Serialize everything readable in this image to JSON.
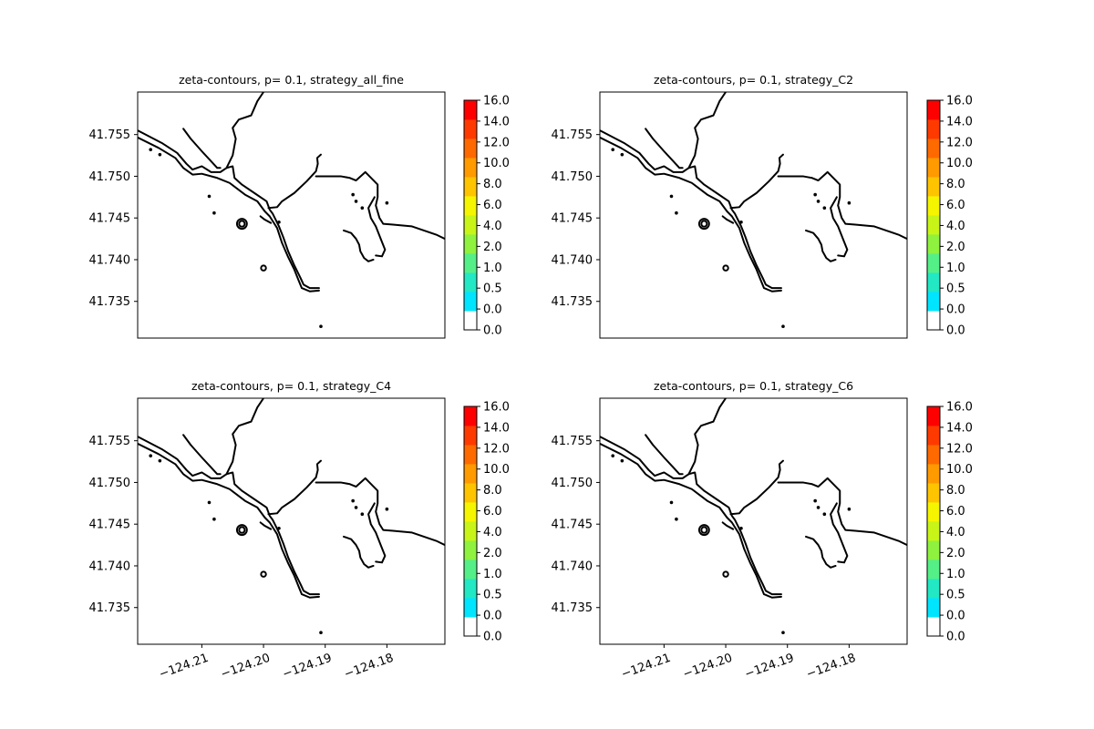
{
  "chart_data": {
    "type": "contour-map",
    "layout": "2x2 subplots with colorbars",
    "xlim": [
      -124.2204,
      -124.1706
    ],
    "ylim": [
      41.7306,
      41.7601
    ],
    "x_ticks": [
      -124.21,
      -124.2,
      -124.19,
      -124.18
    ],
    "x_tick_labels": [
      "−124.21",
      "−124.20",
      "−124.19",
      "−124.18"
    ],
    "y_ticks": [
      41.735,
      41.74,
      41.745,
      41.75,
      41.755
    ],
    "y_tick_labels": [
      "41.735",
      "41.740",
      "41.745",
      "41.750",
      "41.755"
    ],
    "colorbar": {
      "tick_labels": [
        "0.0",
        "0.0",
        "0.5",
        "1.0",
        "2.0",
        "4.0",
        "6.0",
        "8.0",
        "10.0",
        "12.0",
        "14.0",
        "16.0"
      ],
      "colors": [
        "#ffffff",
        "#00e5ff",
        "#22e8c4",
        "#55ef88",
        "#8ef23f",
        "#c8f517",
        "#f5f500",
        "#ffc400",
        "#ff9a00",
        "#ff6a00",
        "#ff3a00",
        "#ff0000"
      ]
    },
    "line_color": "#000000",
    "panels": [
      {
        "title": "zeta-contours, p= 0.1, strategy_all_fine"
      },
      {
        "title": "zeta-contours, p= 0.1, strategy_C2"
      },
      {
        "title": "zeta-contours, p= 0.1, strategy_C4"
      },
      {
        "title": "zeta-contours, p= 0.1, strategy_C6"
      }
    ],
    "shoreline": {
      "lines": [
        [
          [
            -124.2204,
            41.7555
          ],
          [
            -124.2165,
            41.754
          ],
          [
            -124.214,
            41.7528
          ],
          [
            -124.2125,
            41.7515
          ],
          [
            -124.2115,
            41.7508
          ],
          [
            -124.21,
            41.7512
          ],
          [
            -124.2085,
            41.7505
          ],
          [
            -124.207,
            41.7505
          ],
          [
            -124.206,
            41.751
          ],
          [
            -124.205,
            41.7512
          ],
          [
            -124.2047,
            41.7498
          ],
          [
            -124.2035,
            41.749
          ],
          [
            -124.2015,
            41.748
          ],
          [
            -124.1995,
            41.747
          ],
          [
            -124.199,
            41.746
          ],
          [
            -124.1985,
            41.7455
          ],
          [
            -124.1975,
            41.744
          ],
          [
            -124.1968,
            41.7427
          ],
          [
            -124.196,
            41.741
          ],
          [
            -124.195,
            41.7393
          ],
          [
            -124.194,
            41.7378
          ],
          [
            -124.1935,
            41.737
          ],
          [
            -124.1925,
            41.7366
          ],
          [
            -124.191,
            41.7366
          ]
        ],
        [
          [
            -124.2208,
            41.7548
          ],
          [
            -124.217,
            41.7534
          ],
          [
            -124.2143,
            41.7522
          ],
          [
            -124.213,
            41.751
          ],
          [
            -124.2115,
            41.7502
          ],
          [
            -124.21,
            41.7503
          ],
          [
            -124.2075,
            41.7498
          ],
          [
            -124.2055,
            41.7492
          ],
          [
            -124.203,
            41.7478
          ],
          [
            -124.201,
            41.747
          ],
          [
            -124.1998,
            41.7458
          ],
          [
            -124.199,
            41.7452
          ],
          [
            -124.1978,
            41.7438
          ],
          [
            -124.197,
            41.742
          ],
          [
            -124.196,
            41.7403
          ],
          [
            -124.195,
            41.7388
          ],
          [
            -124.1943,
            41.7375
          ],
          [
            -124.1938,
            41.7366
          ],
          [
            -124.1925,
            41.7362
          ],
          [
            -124.191,
            41.7363
          ]
        ],
        [
          [
            -124.213,
            41.7557
          ],
          [
            -124.2118,
            41.7545
          ],
          [
            -124.21,
            41.753
          ],
          [
            -124.2085,
            41.7518
          ],
          [
            -124.2075,
            41.751
          ],
          [
            -124.207,
            41.751
          ]
        ],
        [
          [
            -124.206,
            41.751
          ],
          [
            -124.205,
            41.7525
          ],
          [
            -124.2045,
            41.7545
          ],
          [
            -124.205,
            41.7558
          ],
          [
            -124.204,
            41.7568
          ],
          [
            -124.202,
            41.7573
          ],
          [
            -124.201,
            41.759
          ],
          [
            -124.2,
            41.7601
          ]
        ],
        [
          [
            -124.2005,
            41.7452
          ],
          [
            -124.1998,
            41.7448
          ],
          [
            -124.1988,
            41.7444
          ]
        ],
        [
          [
            -124.1992,
            41.7462
          ],
          [
            -124.1978,
            41.7463
          ],
          [
            -124.197,
            41.747
          ],
          [
            -124.195,
            41.748
          ],
          [
            -124.193,
            41.7494
          ],
          [
            -124.1915,
            41.7506
          ],
          [
            -124.1912,
            41.7515
          ],
          [
            -124.1913,
            41.7522
          ],
          [
            -124.1907,
            41.7526
          ]
        ],
        [
          [
            -124.1915,
            41.75
          ],
          [
            -124.19,
            41.75
          ],
          [
            -124.1875,
            41.75
          ],
          [
            -124.186,
            41.7498
          ],
          [
            -124.185,
            41.7495
          ],
          [
            -124.1835,
            41.7505
          ],
          [
            -124.1815,
            41.749
          ],
          [
            -124.1815,
            41.7475
          ],
          [
            -124.1818,
            41.7465
          ],
          [
            -124.1812,
            41.745
          ],
          [
            -124.1806,
            41.7443
          ],
          [
            -124.179,
            41.7442
          ],
          [
            -124.176,
            41.744
          ],
          [
            -124.174,
            41.7435
          ],
          [
            -124.172,
            41.743
          ],
          [
            -124.1706,
            41.7425
          ]
        ],
        [
          [
            -124.182,
            41.7475
          ],
          [
            -124.183,
            41.7462
          ],
          [
            -124.1826,
            41.745
          ],
          [
            -124.1818,
            41.744
          ],
          [
            -124.181,
            41.7425
          ],
          [
            -124.1803,
            41.7412
          ],
          [
            -124.1808,
            41.7404
          ],
          [
            -124.1818,
            41.7405
          ]
        ],
        [
          [
            -124.187,
            41.7435
          ],
          [
            -124.1858,
            41.7432
          ],
          [
            -124.185,
            41.7425
          ],
          [
            -124.1845,
            41.7418
          ],
          [
            -124.1843,
            41.741
          ],
          [
            -124.1837,
            41.7402
          ],
          [
            -124.183,
            41.7398
          ],
          [
            -124.1822,
            41.74
          ]
        ]
      ],
      "rings": [
        {
          "cx": -124.2035,
          "cy": 41.7443,
          "rx": 0.0008,
          "ry": 0.0006
        },
        {
          "cx": -124.2035,
          "cy": 41.7443,
          "rx": 0.00045,
          "ry": 0.00035
        },
        {
          "cx": -124.2,
          "cy": 41.739,
          "rx": 0.0004,
          "ry": 0.0003
        }
      ],
      "dots": [
        [
          -124.2183,
          41.7532
        ],
        [
          -124.2168,
          41.7526
        ],
        [
          -124.2088,
          41.7476
        ],
        [
          -124.208,
          41.7456
        ],
        [
          -124.1975,
          41.7445
        ],
        [
          -124.1907,
          41.732
        ],
        [
          -124.1855,
          41.7478
        ],
        [
          -124.185,
          41.747
        ],
        [
          -124.184,
          41.7462
        ],
        [
          -124.18,
          41.7468
        ]
      ]
    }
  }
}
